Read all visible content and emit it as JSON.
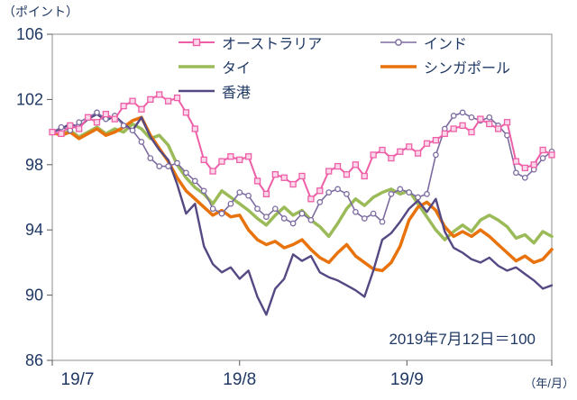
{
  "chart_data": {
    "type": "line",
    "title": "",
    "ylabel_unit": "（ポイント）",
    "xlabel_unit": "（年/月）",
    "annotation": "2019年7月12日＝100",
    "ylim": [
      86,
      106
    ],
    "y_ticks": [
      106,
      102,
      98,
      94,
      90,
      86
    ],
    "x_ticks": [
      {
        "label": "19/7",
        "pos": 0.0
      },
      {
        "label": "19/8",
        "pos": 0.375
      },
      {
        "label": "19/9",
        "pos": 0.71
      }
    ],
    "grid": false,
    "legend_position": "top-inside",
    "axis_color": "#8c8c8c",
    "text_color": "#1F3864",
    "series": [
      {
        "name": "オーストラリア",
        "key": "australia",
        "color": "#EE5FA8",
        "marker": "square",
        "width": 2,
        "values": [
          100.0,
          99.9,
          100.4,
          100.2,
          100.9,
          100.6,
          101.1,
          100.8,
          101.6,
          101.9,
          101.4,
          102.0,
          102.3,
          101.9,
          102.1,
          101.2,
          100.2,
          98.3,
          97.6,
          98.2,
          98.5,
          98.3,
          98.5,
          97.0,
          96.2,
          97.4,
          97.2,
          96.8,
          97.3,
          95.9,
          96.4,
          97.6,
          97.9,
          97.4,
          98.0,
          97.3,
          98.6,
          98.9,
          98.4,
          98.8,
          99.1,
          98.7,
          99.3,
          99.5,
          99.9,
          100.2,
          100.4,
          100.0,
          100.8,
          100.5,
          100.2,
          100.6,
          98.2,
          97.8,
          98.0,
          98.9,
          98.6
        ]
      },
      {
        "name": "インド",
        "key": "india",
        "color": "#7D6BA0",
        "marker": "circle",
        "width": 1.6,
        "values": [
          100.0,
          100.3,
          100.1,
          100.6,
          100.9,
          101.2,
          100.8,
          101.0,
          100.4,
          100.1,
          99.4,
          98.4,
          97.9,
          97.9,
          98.1,
          97.5,
          97.0,
          96.4,
          95.3,
          95.0,
          95.6,
          96.3,
          96.1,
          95.3,
          94.8,
          95.3,
          94.7,
          94.4,
          95.0,
          94.6,
          95.7,
          96.3,
          96.5,
          96.2,
          95.1,
          94.7,
          95.0,
          94.5,
          96.2,
          96.5,
          96.3,
          96.0,
          96.2,
          98.6,
          100.2,
          101.0,
          101.2,
          100.9,
          100.7,
          100.9,
          100.4,
          99.8,
          97.5,
          97.2,
          97.7,
          98.4,
          98.8
        ]
      },
      {
        "name": "タイ",
        "key": "thailand",
        "color": "#9BBB59",
        "marker": "none",
        "width": 3.5,
        "values": [
          100.0,
          99.8,
          100.1,
          99.7,
          100.0,
          100.3,
          99.9,
          100.2,
          100.0,
          100.5,
          100.2,
          99.6,
          99.8,
          99.2,
          98.0,
          97.2,
          96.6,
          96.2,
          95.6,
          96.4,
          96.0,
          95.6,
          95.2,
          94.7,
          94.3,
          94.9,
          95.4,
          94.9,
          95.2,
          94.6,
          94.2,
          93.6,
          94.4,
          95.3,
          95.9,
          95.5,
          96.0,
          96.3,
          96.5,
          96.2,
          96.4,
          95.6,
          94.8,
          94.0,
          93.4,
          93.9,
          94.3,
          93.9,
          94.6,
          94.9,
          94.6,
          94.2,
          93.5,
          93.7,
          93.2,
          93.9,
          93.6
        ]
      },
      {
        "name": "シンガポール",
        "key": "singapore",
        "color": "#E8720C",
        "marker": "none",
        "width": 3.5,
        "values": [
          100.0,
          99.8,
          100.0,
          99.6,
          99.9,
          100.2,
          99.8,
          100.0,
          100.3,
          100.7,
          100.9,
          99.8,
          99.0,
          98.2,
          97.2,
          96.4,
          95.9,
          95.4,
          94.9,
          95.2,
          94.8,
          94.9,
          94.0,
          93.4,
          93.1,
          93.3,
          92.9,
          93.1,
          93.4,
          92.8,
          92.3,
          92.0,
          92.6,
          93.1,
          92.4,
          92.0,
          91.6,
          91.5,
          92.0,
          93.0,
          94.6,
          95.4,
          95.7,
          95.2,
          94.2,
          93.6,
          93.9,
          93.6,
          94.0,
          93.6,
          93.1,
          92.6,
          92.1,
          92.4,
          92.0,
          92.2,
          92.8
        ]
      },
      {
        "name": "香港",
        "key": "hongkong",
        "color": "#554883",
        "marker": "none",
        "width": 2.4,
        "values": [
          100.0,
          100.2,
          100.5,
          100.3,
          100.8,
          101.1,
          100.7,
          101.0,
          100.5,
          100.1,
          100.9,
          99.7,
          98.9,
          98.3,
          96.8,
          95.0,
          95.6,
          93.0,
          91.9,
          91.4,
          91.7,
          91.0,
          91.5,
          89.9,
          88.8,
          90.4,
          91.0,
          92.5,
          92.1,
          92.4,
          91.4,
          91.1,
          90.9,
          90.6,
          90.3,
          89.9,
          91.5,
          93.4,
          93.8,
          94.5,
          95.3,
          95.8,
          95.1,
          95.9,
          93.9,
          92.9,
          92.6,
          92.2,
          92.0,
          92.3,
          91.8,
          91.5,
          91.7,
          91.3,
          90.9,
          90.4,
          90.6
        ]
      }
    ]
  }
}
